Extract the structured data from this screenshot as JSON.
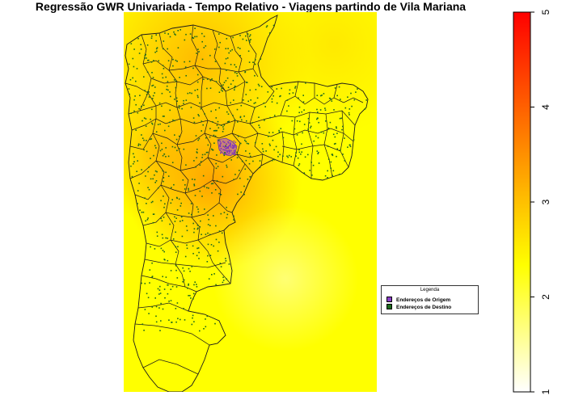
{
  "title": "Regressão GWR Univariada - Tempo Relativo - Viagens partindo de Vila Mariana",
  "legend": {
    "title": "Legenda",
    "items": [
      {
        "label": "Endereços de Origem",
        "color": "#8b3fc7"
      },
      {
        "label": "Endereços de Destino",
        "color": "#1c6b1c"
      }
    ]
  },
  "colors": {
    "origin_points": "#8b3fc7",
    "destination_points": "#1c6b1c",
    "district_borders": "#1a1a1a",
    "surface_low": "#ffff00",
    "surface_high": "#ff8c00"
  },
  "colorbar": {
    "min": 1,
    "max": 5,
    "ticks": [
      "1",
      "2",
      "3",
      "4",
      "5"
    ],
    "orientation": "vertical",
    "position": "right",
    "palette": [
      "#ffffff",
      "#ffff80",
      "#ffff00",
      "#ffc000",
      "#ff8000",
      "#ff4000",
      "#ff0000"
    ]
  },
  "map": {
    "type": "choropleth-surface",
    "region_highlighted": "Vila Mariana",
    "surface_range": [
      1,
      5
    ]
  }
}
